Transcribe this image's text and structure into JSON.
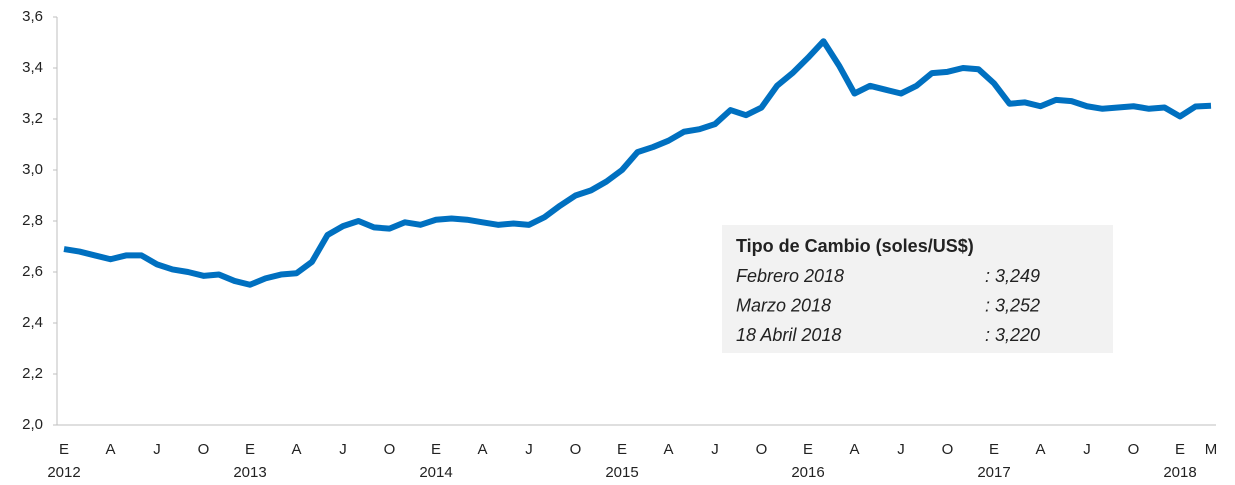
{
  "chart_data": {
    "type": "line",
    "color": "#0070c0",
    "categories": [
      "E",
      null,
      null,
      "A",
      null,
      null,
      "J",
      null,
      null,
      "O",
      null,
      null,
      "E",
      null,
      null,
      "A",
      null,
      null,
      "J",
      null,
      null,
      "O",
      null,
      null,
      "E",
      null,
      null,
      "A",
      null,
      null,
      "J",
      null,
      null,
      "O",
      null,
      null,
      "E",
      null,
      null,
      "A",
      null,
      null,
      "J",
      null,
      null,
      "O",
      null,
      null,
      "E",
      null,
      null,
      "A",
      null,
      null,
      "J",
      null,
      null,
      "O",
      null,
      null,
      "E",
      null,
      null,
      "A",
      null,
      null,
      "J",
      null,
      null,
      "O",
      null,
      null,
      "E",
      null,
      "M"
    ],
    "years": [
      "2012",
      null,
      null,
      null,
      null,
      null,
      null,
      null,
      null,
      null,
      null,
      null,
      "2013",
      null,
      null,
      null,
      null,
      null,
      null,
      null,
      null,
      null,
      null,
      null,
      "2014",
      null,
      null,
      null,
      null,
      null,
      null,
      null,
      null,
      null,
      null,
      null,
      "2015",
      null,
      null,
      null,
      null,
      null,
      null,
      null,
      null,
      null,
      null,
      null,
      "2016",
      null,
      null,
      null,
      null,
      null,
      null,
      null,
      null,
      null,
      null,
      null,
      "2017",
      null,
      null,
      null,
      null,
      null,
      null,
      null,
      null,
      null,
      null,
      null,
      "2018",
      null,
      null
    ],
    "values": [
      2.69,
      2.68,
      2.665,
      2.65,
      2.665,
      2.665,
      2.63,
      2.61,
      2.6,
      2.585,
      2.59,
      2.565,
      2.55,
      2.575,
      2.59,
      2.595,
      2.64,
      2.745,
      2.78,
      2.8,
      2.775,
      2.77,
      2.795,
      2.785,
      2.805,
      2.81,
      2.805,
      2.795,
      2.785,
      2.79,
      2.785,
      2.815,
      2.86,
      2.9,
      2.92,
      2.955,
      3.0,
      3.07,
      3.09,
      3.115,
      3.15,
      3.16,
      3.18,
      3.235,
      3.215,
      3.245,
      3.33,
      3.38,
      3.44,
      3.505,
      3.41,
      3.3,
      3.33,
      3.315,
      3.3,
      3.33,
      3.38,
      3.385,
      3.4,
      3.395,
      3.34,
      3.26,
      3.265,
      3.25,
      3.275,
      3.27,
      3.25,
      3.24,
      3.245,
      3.25,
      3.24,
      3.245,
      3.21,
      3.249,
      3.252
    ],
    "ylim": [
      2.0,
      3.6
    ],
    "yticks": [
      {
        "value": 2.0,
        "label": "2,0"
      },
      {
        "value": 2.2,
        "label": "2,2"
      },
      {
        "value": 2.4,
        "label": "2,4"
      },
      {
        "value": 2.6,
        "label": "2,6"
      },
      {
        "value": 2.8,
        "label": "2,8"
      },
      {
        "value": 3.0,
        "label": "3,0"
      },
      {
        "value": 3.2,
        "label": "3,2"
      },
      {
        "value": 3.4,
        "label": "3,4"
      },
      {
        "value": 3.6,
        "label": "3,6"
      }
    ],
    "annotation": {
      "title": "Tipo de Cambio (soles/US$)",
      "rows": [
        {
          "label": "Febrero 2018",
          "value": ":  3,249"
        },
        {
          "label": "Marzo 2018",
          "value": ":  3,252"
        },
        {
          "label": "18 Abril 2018",
          "value": ":  3,220"
        }
      ]
    }
  }
}
